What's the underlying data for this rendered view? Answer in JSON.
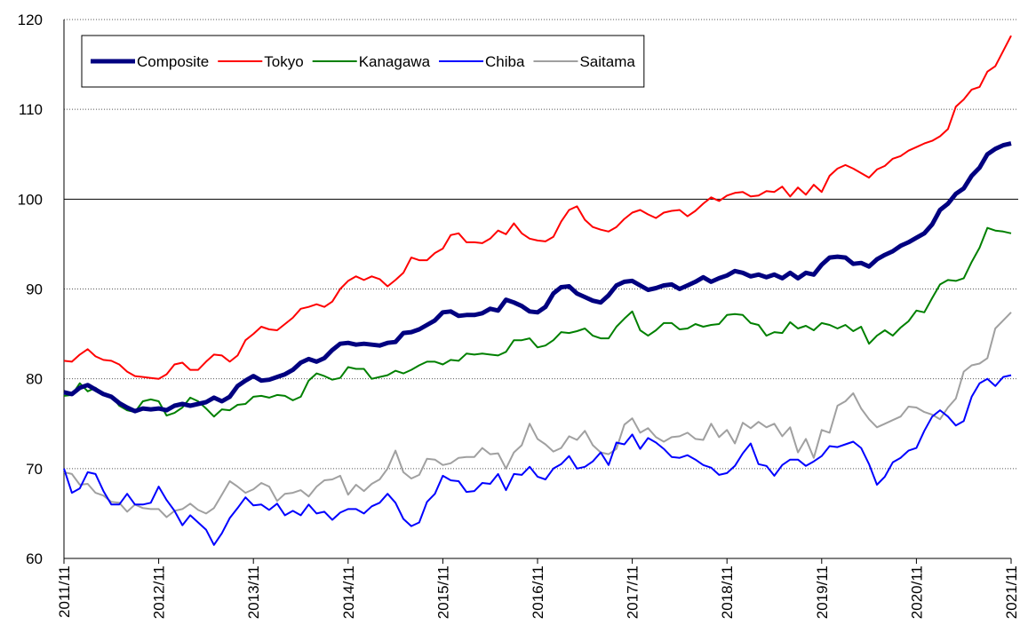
{
  "chart_data": {
    "type": "line",
    "categories": [
      "2011/11",
      null,
      null,
      null,
      null,
      null,
      null,
      null,
      null,
      null,
      null,
      null,
      "2012/11",
      null,
      null,
      null,
      null,
      null,
      null,
      null,
      null,
      null,
      null,
      null,
      "2013/11",
      null,
      null,
      null,
      null,
      null,
      null,
      null,
      null,
      null,
      null,
      null,
      "2014/11",
      null,
      null,
      null,
      null,
      null,
      null,
      null,
      null,
      null,
      null,
      null,
      "2015/11",
      null,
      null,
      null,
      null,
      null,
      null,
      null,
      null,
      null,
      null,
      null,
      "2016/11",
      null,
      null,
      null,
      null,
      null,
      null,
      null,
      null,
      null,
      null,
      null,
      "2017/11",
      null,
      null,
      null,
      null,
      null,
      null,
      null,
      null,
      null,
      null,
      null,
      "2018/11",
      null,
      null,
      null,
      null,
      null,
      null,
      null,
      null,
      null,
      null,
      null,
      "2019/11",
      null,
      null,
      null,
      null,
      null,
      null,
      null,
      null,
      null,
      null,
      null,
      "2020/11",
      null,
      null,
      null,
      null,
      null,
      null,
      null,
      null,
      null,
      null,
      null,
      "2021/11"
    ],
    "ylim": [
      60,
      120
    ],
    "yticks": [
      60,
      70,
      80,
      90,
      100,
      110,
      120
    ],
    "grid": true,
    "hline": 100,
    "legend": "top-left",
    "series": [
      {
        "name": "Composite",
        "color": "#000080",
        "width": 5,
        "values": [
          78.5,
          78.3,
          79.0,
          79.3,
          78.8,
          78.3,
          78.0,
          77.3,
          76.8,
          76.4,
          76.7,
          76.6,
          76.7,
          76.5,
          77.0,
          77.2,
          77.0,
          77.2,
          77.4,
          77.9,
          77.5,
          78.0,
          79.2,
          79.8,
          80.3,
          79.8,
          79.9,
          80.2,
          80.5,
          81.0,
          81.8,
          82.2,
          81.9,
          82.3,
          83.2,
          83.9,
          84.0,
          83.8,
          83.9,
          83.8,
          83.7,
          84.0,
          84.1,
          85.1,
          85.2,
          85.5,
          86.0,
          86.5,
          87.4,
          87.5,
          87.0,
          87.1,
          87.1,
          87.3,
          87.8,
          87.6,
          88.8,
          88.5,
          88.1,
          87.5,
          87.4,
          88.0,
          89.5,
          90.2,
          90.3,
          89.5,
          89.1,
          88.7,
          88.5,
          89.3,
          90.4,
          90.8,
          90.9,
          90.4,
          89.9,
          90.1,
          90.4,
          90.5,
          90.0,
          90.4,
          90.8,
          91.3,
          90.8,
          91.2,
          91.5,
          92.0,
          91.8,
          91.4,
          91.6,
          91.3,
          91.6,
          91.2,
          91.8,
          91.2,
          91.8,
          91.6,
          92.7,
          93.5,
          93.6,
          93.5,
          92.8,
          92.9,
          92.5,
          93.3,
          93.8,
          94.2,
          94.8,
          95.2,
          95.7,
          96.2,
          97.2,
          98.8,
          99.5,
          100.6,
          101.2,
          102.6,
          103.5,
          105.0,
          105.6,
          106.0,
          106.2
        ]
      },
      {
        "name": "Tokyo",
        "color": "#ff0000",
        "width": 2,
        "values": [
          82.0,
          81.9,
          82.7,
          83.3,
          82.5,
          82.1,
          82.0,
          81.6,
          80.8,
          80.3,
          80.2,
          80.1,
          80.0,
          80.5,
          81.6,
          81.8,
          81.0,
          81.0,
          81.9,
          82.7,
          82.6,
          81.9,
          82.6,
          84.3,
          85.0,
          85.8,
          85.5,
          85.4,
          86.1,
          86.8,
          87.8,
          88.0,
          88.3,
          88.0,
          88.6,
          90.0,
          90.9,
          91.4,
          91.0,
          91.4,
          91.1,
          90.3,
          91.0,
          91.8,
          93.5,
          93.2,
          93.2,
          94.0,
          94.5,
          96.0,
          96.2,
          95.2,
          95.2,
          95.1,
          95.6,
          96.5,
          96.1,
          97.3,
          96.2,
          95.6,
          95.4,
          95.3,
          95.8,
          97.5,
          98.8,
          99.2,
          97.7,
          96.9,
          96.6,
          96.4,
          96.9,
          97.8,
          98.5,
          98.8,
          98.3,
          97.9,
          98.5,
          98.7,
          98.8,
          98.1,
          98.7,
          99.5,
          100.2,
          99.8,
          100.4,
          100.7,
          100.8,
          100.3,
          100.4,
          100.9,
          100.8,
          101.4,
          100.3,
          101.3,
          100.5,
          101.6,
          100.8,
          102.6,
          103.4,
          103.8,
          103.4,
          102.9,
          102.4,
          103.3,
          103.7,
          104.5,
          104.8,
          105.4,
          105.8,
          106.2,
          106.5,
          107.0,
          107.8,
          110.3,
          111.1,
          112.2,
          112.5,
          114.2,
          114.8,
          116.5,
          118.2
        ]
      },
      {
        "name": "Kanagawa",
        "color": "#008000",
        "width": 2,
        "values": [
          78.1,
          78.2,
          79.5,
          78.6,
          79.0,
          78.3,
          78.1,
          77.0,
          76.5,
          76.3,
          77.5,
          77.7,
          77.5,
          75.9,
          76.2,
          76.8,
          77.9,
          77.5,
          76.7,
          75.8,
          76.6,
          76.5,
          77.1,
          77.2,
          78.0,
          78.1,
          77.9,
          78.2,
          78.1,
          77.6,
          78.0,
          79.8,
          80.6,
          80.3,
          79.9,
          80.1,
          81.3,
          81.1,
          81.1,
          80.0,
          80.2,
          80.4,
          80.9,
          80.6,
          81.0,
          81.5,
          81.9,
          81.9,
          81.6,
          82.1,
          82.0,
          82.8,
          82.7,
          82.8,
          82.7,
          82.6,
          83.0,
          84.3,
          84.3,
          84.5,
          83.5,
          83.7,
          84.3,
          85.2,
          85.1,
          85.3,
          85.6,
          84.8,
          84.5,
          84.5,
          85.8,
          86.7,
          87.5,
          85.4,
          84.8,
          85.4,
          86.2,
          86.2,
          85.5,
          85.6,
          86.1,
          85.8,
          86.0,
          86.1,
          87.1,
          87.2,
          87.1,
          86.2,
          86.0,
          84.8,
          85.2,
          85.1,
          86.3,
          85.6,
          85.9,
          85.4,
          86.2,
          86.0,
          85.6,
          86.0,
          85.3,
          85.8,
          83.9,
          84.8,
          85.4,
          84.8,
          85.7,
          86.4,
          87.6,
          87.4,
          89.0,
          90.5,
          91.0,
          90.9,
          91.2,
          93.0,
          94.6,
          96.8,
          96.5,
          96.4,
          96.2
        ]
      },
      {
        "name": "Chiba",
        "color": "#0000ff",
        "width": 2,
        "values": [
          70.0,
          67.3,
          67.8,
          69.6,
          69.4,
          67.5,
          66.0,
          66.0,
          67.2,
          66.0,
          66.0,
          66.2,
          68.0,
          66.5,
          65.3,
          63.7,
          64.8,
          64.0,
          63.2,
          61.5,
          62.8,
          64.5,
          65.6,
          66.8,
          65.9,
          66.0,
          65.4,
          66.1,
          64.8,
          65.3,
          64.8,
          66.0,
          65.0,
          65.2,
          64.3,
          65.1,
          65.5,
          65.5,
          65.0,
          65.8,
          66.2,
          67.2,
          66.2,
          64.4,
          63.6,
          64.0,
          66.3,
          67.2,
          69.2,
          68.7,
          68.6,
          67.4,
          67.5,
          68.4,
          68.3,
          69.4,
          67.6,
          69.4,
          69.3,
          70.2,
          69.1,
          68.8,
          70.0,
          70.5,
          71.4,
          70.0,
          70.2,
          70.8,
          71.8,
          70.4,
          72.9,
          72.7,
          73.8,
          72.2,
          73.4,
          72.9,
          72.2,
          71.3,
          71.2,
          71.5,
          71.0,
          70.4,
          70.1,
          69.3,
          69.5,
          70.3,
          71.7,
          72.8,
          70.5,
          70.3,
          69.2,
          70.4,
          71.0,
          71.0,
          70.3,
          70.8,
          71.4,
          72.5,
          72.4,
          72.7,
          73.0,
          72.3,
          70.5,
          68.2,
          69.1,
          70.7,
          71.2,
          72.0,
          72.3,
          74.2,
          75.8,
          76.5,
          75.8,
          74.8,
          75.3,
          78.0,
          79.5,
          80.0,
          79.2,
          80.2,
          80.4
        ]
      },
      {
        "name": "Saitama",
        "color": "#a0a0a0",
        "width": 2,
        "values": [
          69.6,
          69.4,
          68.2,
          68.3,
          67.3,
          67.0,
          66.3,
          66.2,
          65.2,
          66.0,
          65.6,
          65.5,
          65.5,
          64.6,
          65.3,
          65.5,
          66.1,
          65.4,
          65.0,
          65.6,
          67.1,
          68.6,
          68.0,
          67.3,
          67.7,
          68.4,
          68.0,
          66.4,
          67.2,
          67.3,
          67.6,
          66.9,
          68.0,
          68.7,
          68.8,
          69.2,
          67.1,
          68.2,
          67.5,
          68.3,
          68.8,
          70.0,
          72.0,
          69.6,
          68.9,
          69.3,
          71.1,
          71.0,
          70.4,
          70.6,
          71.2,
          71.3,
          71.3,
          72.3,
          71.6,
          71.7,
          70.0,
          71.8,
          72.6,
          75.0,
          73.3,
          72.7,
          71.9,
          72.3,
          73.6,
          73.2,
          74.2,
          72.6,
          71.8,
          71.6,
          72.2,
          74.9,
          75.6,
          74.0,
          74.5,
          73.5,
          73.0,
          73.5,
          73.6,
          74.0,
          73.3,
          73.2,
          75.0,
          73.5,
          74.3,
          72.8,
          75.1,
          74.5,
          75.2,
          74.6,
          75.0,
          73.6,
          74.6,
          71.8,
          73.3,
          71.2,
          74.3,
          74.0,
          77.0,
          77.5,
          78.4,
          76.7,
          75.5,
          74.6,
          75.0,
          75.4,
          75.8,
          76.9,
          76.8,
          76.3,
          76.0,
          75.5,
          76.8,
          77.8,
          80.8,
          81.5,
          81.7,
          82.3,
          85.6,
          86.5,
          87.4
        ]
      }
    ]
  }
}
